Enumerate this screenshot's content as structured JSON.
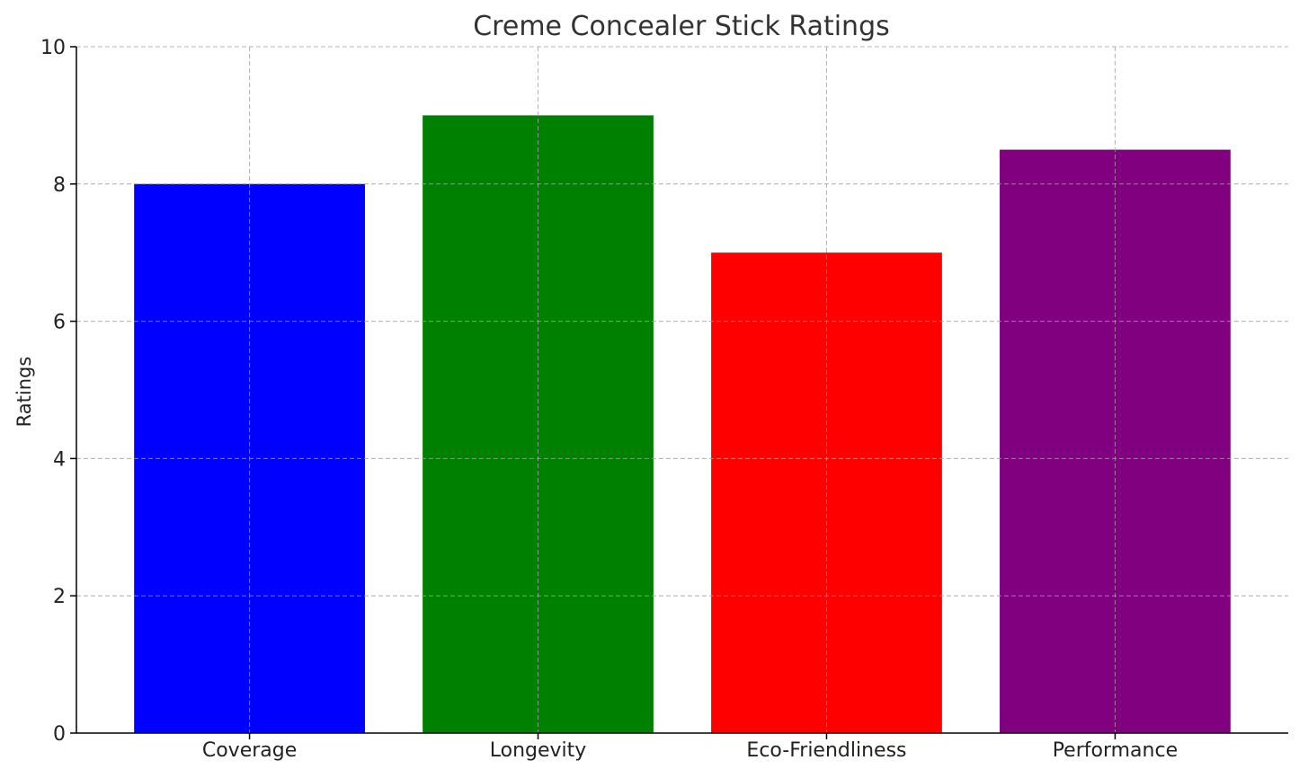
{
  "chart_data": {
    "type": "bar",
    "title": "Creme Concealer Stick Ratings",
    "xlabel": "",
    "ylabel": "Ratings",
    "categories": [
      "Coverage",
      "Longevity",
      "Eco-Friendliness",
      "Performance"
    ],
    "values": [
      8,
      9,
      7,
      8.5
    ],
    "bar_colors": [
      "#0000ff",
      "#008000",
      "#ff0000",
      "#800080"
    ],
    "ylim": [
      0,
      10
    ],
    "yticks": [
      0,
      2,
      4,
      6,
      8,
      10
    ],
    "grid": true
  }
}
